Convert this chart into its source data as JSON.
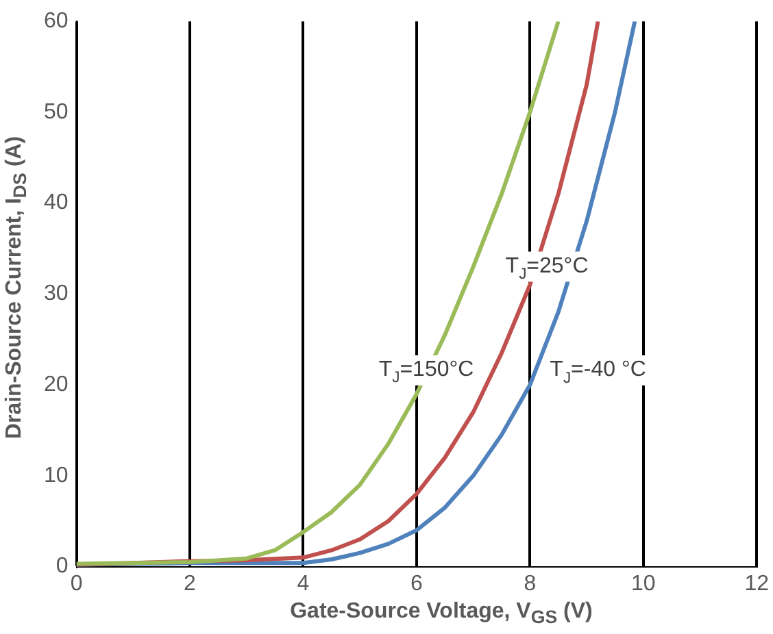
{
  "chart_data": {
    "type": "line",
    "xlabel": "Gate-Source Voltage, V$_{GS}$ (V)",
    "ylabel": "Drain-Source Current, I$_{DS}$ (A)",
    "xlim": [
      0,
      12
    ],
    "xticks": [
      0,
      2,
      4,
      6,
      8,
      10,
      12
    ],
    "ylim": [
      0,
      60
    ],
    "yticks": [
      0,
      10,
      20,
      30,
      40,
      50,
      60
    ],
    "grid": "x",
    "legend": false,
    "marker": "none",
    "line_style": "solid",
    "series": [
      {
        "name": "T$_{J}$=150°C",
        "color": "#9bbb59",
        "x": [
          0,
          1,
          2,
          3,
          3.5,
          4,
          4.5,
          5,
          5.5,
          6,
          6.5,
          7,
          7.5,
          8,
          8.5
        ],
        "values": [
          0.3,
          0.4,
          0.5,
          0.9,
          1.8,
          3.8,
          6,
          9,
          13.5,
          19,
          25.5,
          33,
          41,
          50,
          60
        ]
      },
      {
        "name": "T$_{J}$=25°C",
        "color": "#c0504d",
        "x": [
          0,
          1,
          2,
          3,
          4,
          4.5,
          5,
          5.5,
          6,
          6.5,
          7,
          7.5,
          8,
          8.5,
          9,
          9.2
        ],
        "values": [
          0.2,
          0.4,
          0.6,
          0.7,
          1,
          1.8,
          3,
          5,
          8,
          12,
          17,
          23.5,
          31,
          41,
          53,
          60
        ]
      },
      {
        "name": "T$_{J}$=-40 °C",
        "color": "#4f81bd",
        "x": [
          0,
          1,
          2,
          3,
          4,
          4.5,
          5,
          5.5,
          6,
          6.5,
          7,
          7.5,
          8,
          8.5,
          9,
          9.5,
          9.85
        ],
        "values": [
          0.2,
          0.3,
          0.4,
          0.4,
          0.4,
          0.8,
          1.5,
          2.5,
          4,
          6.5,
          10,
          14.5,
          20,
          28,
          38,
          50,
          60
        ]
      }
    ]
  }
}
